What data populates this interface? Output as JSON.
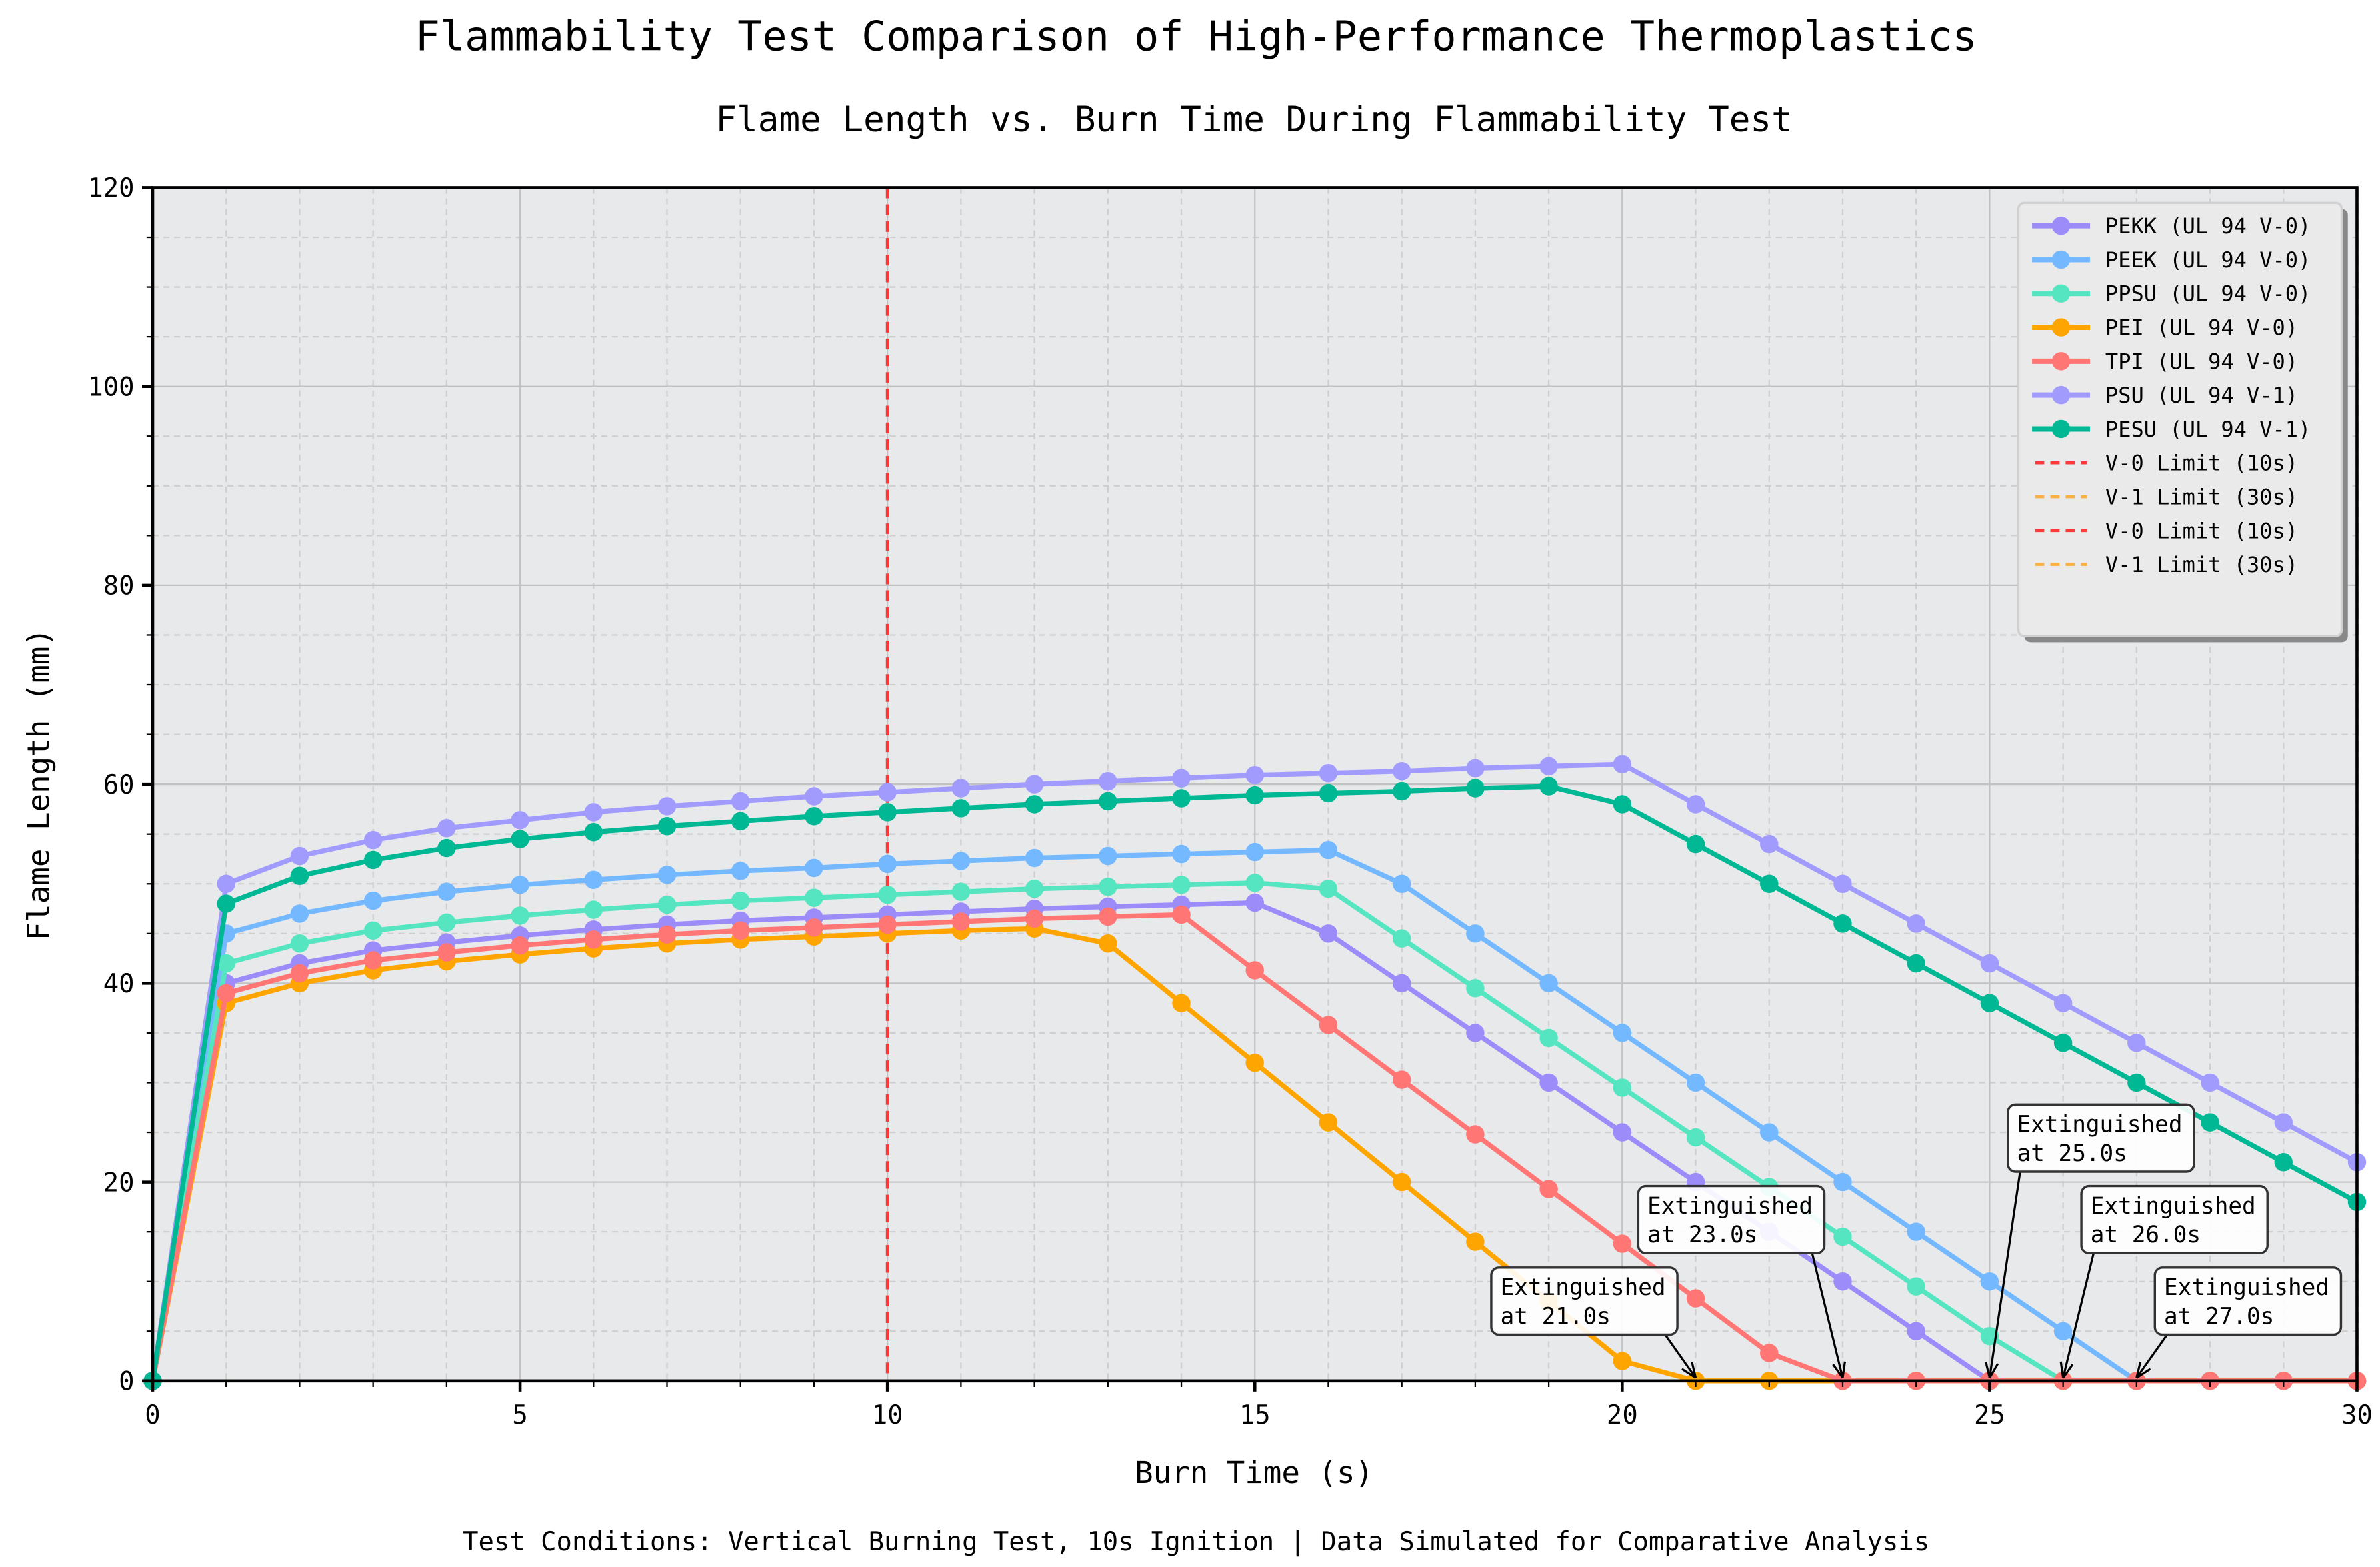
{
  "chart_data": {
    "type": "line",
    "suptitle": "Flammability Test Comparison of High-Performance Thermoplastics",
    "title": "Flame Length vs. Burn Time During Flammability Test",
    "xlabel": "Burn Time (s)",
    "ylabel": "Flame Length (mm)",
    "footer": "Test Conditions: Vertical Burning Test, 10s Ignition | Data Simulated for Comparative Analysis",
    "xlim": [
      0,
      30
    ],
    "ylim": [
      0,
      120
    ],
    "xticks": [
      0,
      5,
      10,
      15,
      20,
      25,
      30
    ],
    "yticks": [
      0,
      20,
      40,
      60,
      80,
      100,
      120
    ],
    "grid": true,
    "legend_placement": "top-right",
    "x": [
      0,
      1,
      2,
      3,
      4,
      5,
      6,
      7,
      8,
      9,
      10,
      11,
      12,
      13,
      14,
      15,
      16,
      17,
      18,
      19,
      20,
      21,
      22,
      23,
      24,
      25,
      26,
      27,
      28,
      29,
      30
    ],
    "series": [
      {
        "name": "PEKK (UL 94 V-0)",
        "color": "#9b8cfa",
        "values": [
          0,
          40,
          42,
          43.3,
          44.1,
          44.8,
          45.4,
          45.9,
          46.3,
          46.6,
          46.9,
          47.2,
          47.5,
          47.7,
          47.9,
          48.1,
          45,
          40,
          35,
          30,
          25,
          20,
          15,
          10,
          5,
          0,
          0,
          0,
          0,
          0,
          0
        ]
      },
      {
        "name": "PEEK (UL 94 V-0)",
        "color": "#74b9ff",
        "values": [
          0,
          45,
          47,
          48.3,
          49.2,
          49.9,
          50.4,
          50.9,
          51.3,
          51.6,
          52,
          52.3,
          52.6,
          52.8,
          53,
          53.2,
          53.4,
          50,
          45,
          40,
          35,
          30,
          25,
          20,
          15,
          10,
          5,
          0,
          0,
          0,
          0
        ]
      },
      {
        "name": "PPSU (UL 94 V-0)",
        "color": "#55e6c1",
        "values": [
          0,
          42,
          44,
          45.3,
          46.1,
          46.8,
          47.4,
          47.9,
          48.3,
          48.6,
          48.9,
          49.2,
          49.5,
          49.7,
          49.9,
          50.1,
          49.5,
          44.5,
          39.5,
          34.5,
          29.5,
          24.5,
          19.5,
          14.5,
          9.5,
          4.5,
          0,
          0,
          0,
          0,
          0
        ]
      },
      {
        "name": "PEI (UL 94 V-0)",
        "color": "#ffa502",
        "values": [
          0,
          38,
          40,
          41.3,
          42.2,
          42.9,
          43.5,
          44,
          44.4,
          44.7,
          45,
          45.3,
          45.5,
          44,
          38,
          32,
          26,
          20,
          14,
          8,
          2,
          0,
          0,
          0,
          0,
          0,
          0,
          0,
          0,
          0,
          0
        ]
      },
      {
        "name": "TPI (UL 94 V-0)",
        "color": "#ff7675",
        "values": [
          0,
          39,
          41,
          42.3,
          43.1,
          43.8,
          44.4,
          44.9,
          45.3,
          45.6,
          45.9,
          46.2,
          46.5,
          46.7,
          46.9,
          41.3,
          35.8,
          30.3,
          24.8,
          19.3,
          13.8,
          8.3,
          2.8,
          0,
          0,
          0,
          0,
          0,
          0,
          0,
          0
        ]
      },
      {
        "name": "PSU (UL 94 V-1)",
        "color": "#a29bfe",
        "values": [
          0,
          50,
          52.8,
          54.4,
          55.6,
          56.4,
          57.2,
          57.8,
          58.3,
          58.8,
          59.2,
          59.6,
          60,
          60.3,
          60.6,
          60.9,
          61.1,
          61.3,
          61.6,
          61.8,
          62,
          58,
          54,
          50,
          46,
          42,
          38,
          34,
          30,
          26,
          22
        ]
      },
      {
        "name": "PESU (UL 94 V-1)",
        "color": "#00b894",
        "values": [
          0,
          48,
          50.8,
          52.4,
          53.6,
          54.5,
          55.2,
          55.8,
          56.3,
          56.8,
          57.2,
          57.6,
          58,
          58.3,
          58.6,
          58.9,
          59.1,
          59.3,
          59.6,
          59.8,
          58,
          54,
          50,
          46,
          42,
          38,
          34,
          30,
          26,
          22,
          18
        ]
      }
    ],
    "reference_lines": [
      {
        "name": "V-0 Limit (10s)",
        "x": 10,
        "color": "#ff3838"
      },
      {
        "name": "V-1 Limit (30s)",
        "x": 30,
        "color": "#ffb8b8"
      },
      {
        "name": "V-0 Limit (10s)",
        "x": 10,
        "color": "#ff3838"
      },
      {
        "name": "V-1 Limit (30s)",
        "x": 30,
        "color": "#fbb040"
      }
    ],
    "annotations": [
      {
        "line1": "Extinguished",
        "line2": "at 21.0s",
        "x": 21,
        "y": 0
      },
      {
        "line1": "Extinguished",
        "line2": "at 23.0s",
        "x": 23,
        "y": 0
      },
      {
        "line1": "Extinguished",
        "line2": "at 25.0s",
        "x": 25,
        "y": 0
      },
      {
        "line1": "Extinguished",
        "line2": "at 27.0s",
        "x": 27,
        "y": 0
      },
      {
        "line1": "Extinguished",
        "line2": "at 26.0s",
        "x": 26,
        "y": 0
      }
    ]
  }
}
